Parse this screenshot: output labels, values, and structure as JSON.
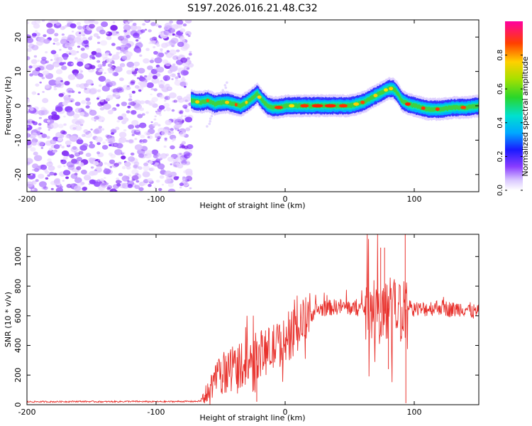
{
  "title": "S197.2026.016.21.48.C32",
  "chart_data": [
    {
      "type": "heatmap",
      "xlabel": "Height of straight line (km)",
      "ylabel": "Frequency (Hz)",
      "xlim": [
        -200,
        150
      ],
      "ylim": [
        -25,
        25
      ],
      "xticks": [
        -200,
        -100,
        0,
        100
      ],
      "yticks": [
        -20,
        -10,
        0,
        10,
        20
      ],
      "noise_region_end_x": -73,
      "ridge": {
        "x": [
          -73,
          -66,
          -60,
          -55,
          -50,
          -45,
          -40,
          -35,
          -30,
          -25,
          -22,
          -18,
          -14,
          -10,
          -5,
          0,
          10,
          20,
          30,
          40,
          50,
          55,
          60,
          65,
          70,
          75,
          80,
          83,
          86,
          90,
          95,
          100,
          105,
          110,
          115,
          120,
          130,
          140,
          150
        ],
        "freq": [
          1.5,
          1.0,
          1.5,
          0.5,
          1.0,
          1.0,
          0.5,
          0.0,
          1.0,
          2.5,
          3.5,
          1.5,
          0.0,
          -0.5,
          -0.5,
          0.0,
          0.0,
          0.0,
          0.0,
          0.0,
          0.0,
          0.5,
          1.0,
          2.0,
          3.0,
          4.0,
          5.0,
          5.0,
          4.0,
          1.5,
          0.5,
          0.0,
          -0.5,
          -1.0,
          -1.0,
          -1.0,
          -0.5,
          -0.5,
          0.0
        ]
      },
      "colorbar": {
        "label": "Normalized spectral amplitude",
        "range": [
          0,
          1
        ],
        "ticks": [
          0.0,
          0.2,
          0.4,
          0.6,
          0.8
        ],
        "tick_labels": [
          "0.0",
          "0.2",
          "0.4",
          "0.6",
          "0.8"
        ]
      }
    },
    {
      "type": "line",
      "xlabel": "Height of straight line (km)",
      "ylabel": "SNR (10 * v/v)",
      "xlim": [
        -200,
        150
      ],
      "ylim": [
        0,
        1150
      ],
      "xticks": [
        -200,
        -100,
        0,
        100
      ],
      "yticks": [
        0,
        200,
        400,
        600,
        800,
        1000
      ],
      "color": "#e8322d",
      "series": [
        {
          "name": "SNR",
          "x": [
            -200,
            -180,
            -160,
            -140,
            -120,
            -100,
            -80,
            -70,
            -65,
            -60,
            -55,
            -50,
            -45,
            -40,
            -35,
            -30,
            -25,
            -20,
            -15,
            -10,
            -5,
            0,
            5,
            10,
            15,
            20,
            25,
            30,
            35,
            40,
            45,
            50,
            55,
            60,
            65,
            70,
            75,
            80,
            85,
            90,
            93,
            95,
            100,
            105,
            110,
            115,
            120,
            125,
            130,
            135,
            140,
            145,
            150
          ],
          "y": [
            20,
            20,
            22,
            20,
            22,
            20,
            22,
            22,
            25,
            90,
            150,
            200,
            230,
            260,
            270,
            280,
            320,
            340,
            360,
            380,
            410,
            420,
            470,
            520,
            570,
            610,
            640,
            650,
            655,
            660,
            660,
            655,
            650,
            650,
            650,
            620,
            620,
            650,
            640,
            640,
            640,
            650,
            650,
            640,
            650,
            655,
            660,
            650,
            640,
            650,
            650,
            630,
            620
          ]
        }
      ]
    }
  ]
}
